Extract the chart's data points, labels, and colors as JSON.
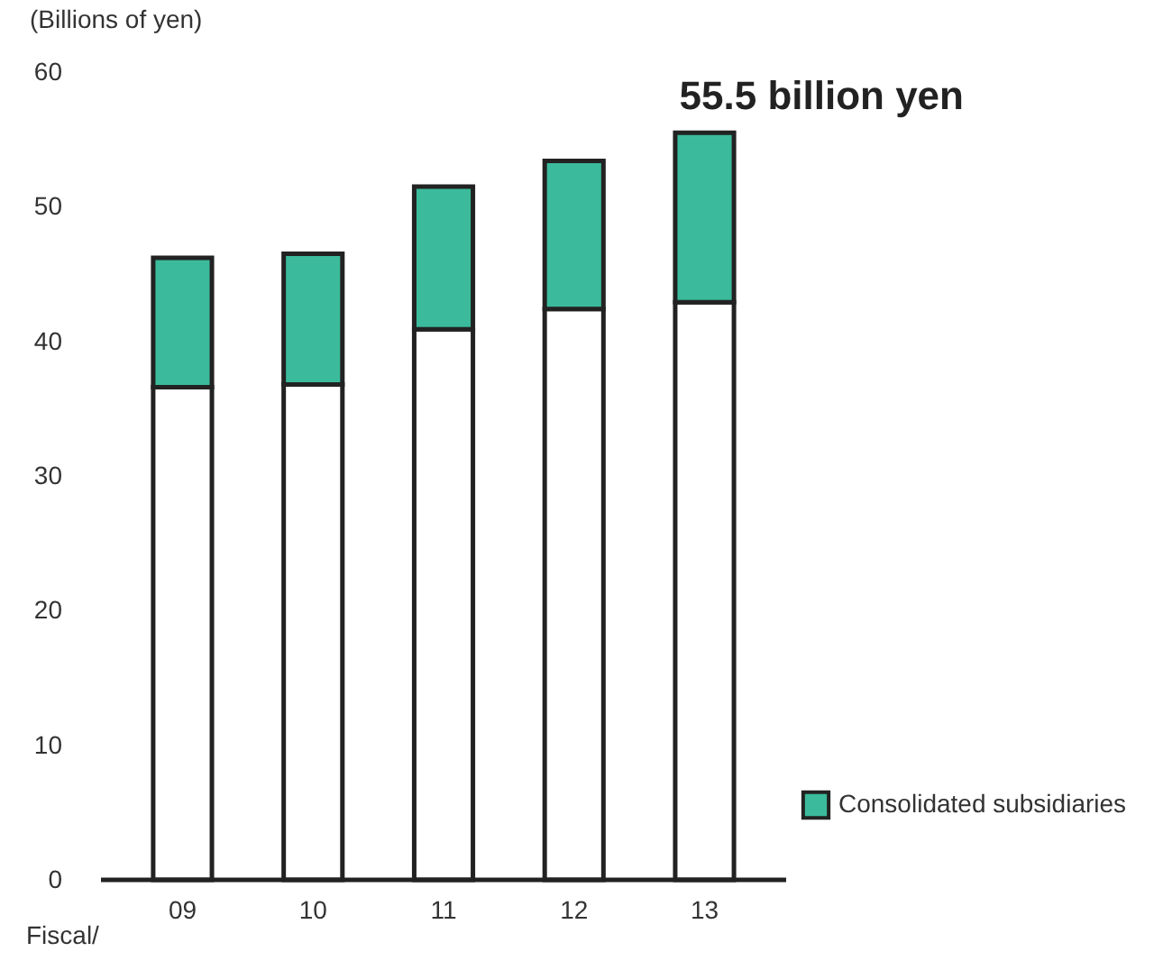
{
  "chart_data": {
    "type": "bar",
    "stacked": true,
    "ylabel": "(Billions of yen)",
    "xlabel": "Fiscal/",
    "categories": [
      "09",
      "10",
      "11",
      "12",
      "13"
    ],
    "series": [
      {
        "color": "#ffffff",
        "values": [
          36.6,
          36.8,
          40.9,
          42.4,
          42.9
        ]
      },
      {
        "name": "Consolidated subsidiaries",
        "color": "#3bbb9b",
        "values": [
          9.6,
          9.7,
          10.6,
          11.0,
          12.6
        ]
      }
    ],
    "ylim": [
      0,
      60
    ],
    "yticks": [
      0,
      10,
      20,
      30,
      40,
      50,
      60
    ],
    "grid": false,
    "legend": "bottom right",
    "annotations": [
      {
        "text": "55.5 billion yen",
        "x": "13",
        "y": 55.5
      }
    ]
  }
}
